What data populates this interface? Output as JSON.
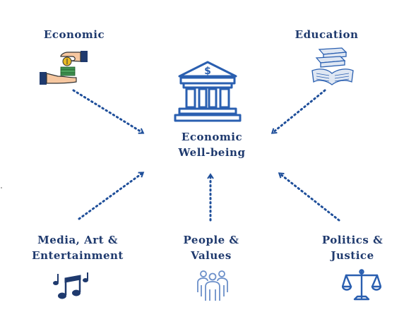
{
  "center": {
    "line1": "Economic",
    "line2": "Well-being"
  },
  "nodes": {
    "economic": {
      "label": "Economic"
    },
    "education": {
      "label": "Education"
    },
    "media": {
      "line1": "Media, Art &",
      "line2": "Entertainment"
    },
    "people": {
      "line1": "People &",
      "line2": "Values"
    },
    "politics": {
      "line1": "Politics &",
      "line2": "Justice"
    }
  },
  "colors": {
    "navy": "#1f3a6e",
    "arrow": "#1f4f9a",
    "icon_blue": "#2a5fb0",
    "money_green": "#3f8f4f",
    "coin_gold": "#e8b923"
  },
  "icons": {
    "economic": "money-exchange-icon",
    "education": "books-icon",
    "center": "bank-dollar-icon",
    "media": "music-notes-icon",
    "people": "people-group-icon",
    "politics": "scales-icon"
  }
}
